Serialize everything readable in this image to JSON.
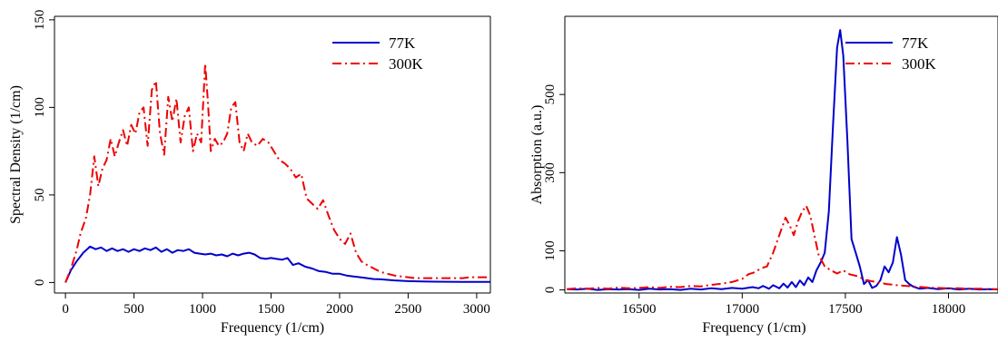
{
  "chart_data": [
    {
      "type": "line",
      "title": "",
      "xlabel": "Frequency (1/cm)",
      "ylabel": "Spectral Density (1/cm)",
      "xlim": [
        -80,
        3100
      ],
      "ylim": [
        -6,
        152
      ],
      "xticks": [
        0,
        500,
        1000,
        1500,
        2000,
        2500,
        3000
      ],
      "yticks": [
        0,
        50,
        100,
        150
      ],
      "grid": false,
      "legend_position": "top-right",
      "series": [
        {
          "name": "77K",
          "color": "#0000cc",
          "style": "solid",
          "x": [
            0,
            40,
            80,
            130,
            180,
            220,
            260,
            300,
            340,
            380,
            420,
            460,
            500,
            540,
            580,
            620,
            660,
            700,
            740,
            780,
            820,
            860,
            900,
            940,
            980,
            1020,
            1060,
            1100,
            1140,
            1180,
            1220,
            1260,
            1300,
            1340,
            1380,
            1420,
            1460,
            1500,
            1540,
            1580,
            1620,
            1660,
            1700,
            1750,
            1800,
            1850,
            1900,
            1950,
            2000,
            2050,
            2100,
            2150,
            2200,
            2250,
            2300,
            2350,
            2400,
            2450,
            2500,
            2600,
            2700,
            2800,
            2900,
            3000,
            3100
          ],
          "y": [
            0,
            7,
            12,
            17,
            20.5,
            19,
            20,
            18,
            19.5,
            18,
            19,
            17.5,
            19,
            18,
            19.5,
            18.5,
            20,
            17.5,
            19,
            17,
            18.5,
            18,
            19,
            17,
            16.5,
            16,
            16.5,
            15.5,
            16,
            15,
            16.5,
            15.5,
            16.5,
            17,
            16,
            14,
            13.5,
            14,
            13.5,
            13,
            14,
            10,
            11,
            9,
            8,
            6.5,
            6,
            5,
            5,
            4,
            3.5,
            3,
            2.5,
            2,
            1.8,
            1.5,
            1.2,
            1,
            0.8,
            0.6,
            0.5,
            0.4,
            0.3,
            0.3,
            0.3
          ]
        },
        {
          "name": "300K",
          "color": "#ee0000",
          "style": "dash-dot",
          "x": [
            0,
            40,
            80,
            110,
            150,
            180,
            210,
            240,
            270,
            300,
            330,
            360,
            390,
            420,
            450,
            480,
            510,
            540,
            570,
            600,
            630,
            660,
            690,
            720,
            750,
            780,
            810,
            840,
            870,
            900,
            930,
            960,
            990,
            1020,
            1040,
            1060,
            1090,
            1120,
            1150,
            1180,
            1210,
            1240,
            1270,
            1300,
            1330,
            1360,
            1400,
            1440,
            1480,
            1520,
            1560,
            1600,
            1640,
            1680,
            1720,
            1760,
            1800,
            1840,
            1880,
            1920,
            1960,
            2000,
            2040,
            2080,
            2120,
            2160,
            2200,
            2250,
            2300,
            2350,
            2400,
            2450,
            2500,
            2550,
            2600,
            2650,
            2700,
            2750,
            2800,
            2850,
            2900,
            2950,
            3000,
            3050,
            3100
          ],
          "y": [
            0,
            8,
            18,
            28,
            37,
            50,
            72,
            55,
            65,
            70,
            82,
            72,
            80,
            87,
            78,
            90,
            85,
            97,
            100,
            78,
            110,
            115,
            85,
            73,
            106,
            92,
            105,
            80,
            95,
            100,
            75,
            85,
            80,
            125,
            102,
            75,
            82,
            78,
            80,
            85,
            100,
            103,
            80,
            75,
            85,
            80,
            78,
            82,
            80,
            75,
            70,
            68,
            65,
            60,
            62,
            48,
            45,
            42,
            47,
            38,
            30,
            25,
            22,
            28,
            17,
            12,
            10,
            8,
            6,
            5,
            4,
            3.5,
            3,
            2.5,
            2.5,
            2.5,
            2.5,
            2.5,
            2.5,
            2.5,
            2.5,
            3,
            3,
            3,
            3
          ]
        }
      ]
    },
    {
      "type": "line",
      "title": "",
      "xlabel": "Frequency (1/cm)",
      "ylabel": "Absorption (a.u.)",
      "xlim": [
        16140,
        18240
      ],
      "ylim": [
        -8,
        700
      ],
      "xticks": [
        16500,
        17000,
        17500,
        18000
      ],
      "yticks": [
        0,
        100,
        300,
        500
      ],
      "grid": false,
      "legend_position": "top-right",
      "series": [
        {
          "name": "77K",
          "color": "#0000cc",
          "style": "solid",
          "x": [
            16150,
            16200,
            16250,
            16300,
            16350,
            16400,
            16450,
            16500,
            16550,
            16600,
            16650,
            16700,
            16750,
            16800,
            16850,
            16900,
            16950,
            17000,
            17050,
            17080,
            17100,
            17130,
            17150,
            17180,
            17200,
            17220,
            17240,
            17260,
            17280,
            17300,
            17320,
            17340,
            17360,
            17380,
            17400,
            17420,
            17440,
            17460,
            17475,
            17490,
            17510,
            17530,
            17550,
            17570,
            17590,
            17610,
            17630,
            17650,
            17670,
            17690,
            17710,
            17730,
            17750,
            17770,
            17790,
            17810,
            17830,
            17860,
            17900,
            17950,
            18000,
            18050,
            18100,
            18150,
            18200,
            18240
          ],
          "y": [
            2,
            1,
            3,
            0,
            2,
            1,
            2,
            0,
            3,
            1,
            2,
            0,
            3,
            1,
            4,
            2,
            5,
            3,
            7,
            4,
            10,
            3,
            12,
            4,
            16,
            6,
            20,
            7,
            24,
            12,
            32,
            20,
            50,
            70,
            95,
            200,
            420,
            620,
            665,
            600,
            380,
            130,
            95,
            60,
            15,
            25,
            5,
            10,
            25,
            60,
            45,
            70,
            135,
            90,
            25,
            15,
            8,
            3,
            5,
            2,
            4,
            1,
            3,
            1,
            2,
            1
          ]
        },
        {
          "name": "300K",
          "color": "#ee0000",
          "style": "dash-dot",
          "x": [
            16150,
            16200,
            16250,
            16300,
            16350,
            16400,
            16450,
            16500,
            16550,
            16600,
            16650,
            16700,
            16750,
            16800,
            16850,
            16900,
            16950,
            17000,
            17030,
            17060,
            17090,
            17120,
            17150,
            17180,
            17210,
            17230,
            17250,
            17270,
            17290,
            17310,
            17330,
            17350,
            17370,
            17400,
            17430,
            17460,
            17490,
            17520,
            17560,
            17600,
            17650,
            17700,
            17750,
            17800,
            17850,
            17900,
            17950,
            18000,
            18050,
            18100,
            18150,
            18200,
            18240
          ],
          "y": [
            2,
            4,
            3,
            5,
            3,
            6,
            4,
            5,
            7,
            5,
            8,
            7,
            10,
            9,
            13,
            16,
            20,
            28,
            40,
            45,
            55,
            60,
            95,
            140,
            185,
            165,
            140,
            175,
            200,
            215,
            190,
            140,
            90,
            60,
            50,
            42,
            50,
            40,
            35,
            25,
            20,
            15,
            12,
            10,
            8,
            6,
            5,
            4,
            4,
            3,
            3,
            2,
            2
          ]
        }
      ]
    }
  ]
}
